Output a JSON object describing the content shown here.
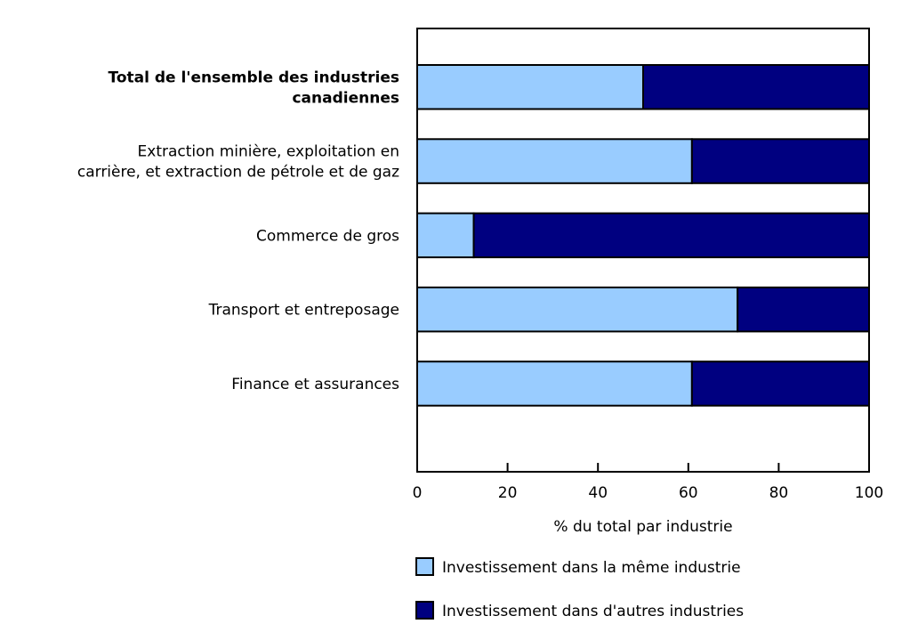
{
  "chart_data": {
    "type": "bar",
    "orientation": "horizontal",
    "stacked": true,
    "categories": [
      "Total de l'ensemble des industries canadiennes",
      "Extraction minière, exploitation en carrière, et extraction de pétrole et de gaz",
      "Commerce de gros",
      "Transport et entreposage",
      "Finance et assurances"
    ],
    "category_lines": [
      [
        "Total de l'ensemble des industries",
        "canadiennes"
      ],
      [
        "Extraction minière, exploitation en",
        "carrière, et extraction de pétrole et de gaz"
      ],
      [
        "Commerce de gros"
      ],
      [
        "Transport et entreposage"
      ],
      [
        "Finance et assurances"
      ]
    ],
    "category_bold": [
      true,
      false,
      false,
      false,
      false
    ],
    "series": [
      {
        "name": "Investissement dans la même industrie",
        "color": "#99ccff",
        "values": [
          50.0,
          60.8,
          12.5,
          70.9,
          60.8
        ]
      },
      {
        "name": "Investissement dans d'autres industries",
        "color": "#000080",
        "values": [
          50.0,
          39.2,
          87.5,
          29.1,
          39.2
        ]
      }
    ],
    "xlabel": "% du total par industrie",
    "ylabel": "",
    "xlim": [
      0,
      100
    ],
    "xticks": [
      "0",
      "20",
      "40",
      "60",
      "80",
      "100"
    ],
    "grid": false,
    "legend_position": "bottom"
  }
}
